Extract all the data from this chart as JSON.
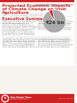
{
  "title_line1": "Projected Economic Impacts",
  "title_line2": "of Climate Change on Irish",
  "title_line3": "Agriculture",
  "category_label": "October 2012",
  "subtitle": "Commissioned report on behalf of Stop Climate Chaos",
  "subtitle2": "Author: Dr. Stefanie Cave, Teagasc, December 2012",
  "section_title": "Executive Summary",
  "pie_title": "Contribution of Irish Sector to Irish Economy",
  "pie_values": [
    95,
    5
  ],
  "pie_colors": [
    "#aaaaaa",
    "#cc2222"
  ],
  "pie_center_text": "€24 bn",
  "pie_caption": "Annual Contribution of Irish Agriculture",
  "background_color": "#f7f4f0",
  "white_bg": "#ffffff",
  "title_color": "#cc2222",
  "section_title_color": "#cc2222",
  "body_text_color": "#444444",
  "footer_bg": "#cc2222",
  "top_bar_color": "#cc2222",
  "body_left": [
    "This report presents the projected economic impacts and",
    "climate change on Irish agriculture, especially in the",
    "light of increasing momentum and international",
    "negotiations to reduce carbon emissions.",
    "Commissioned to address the emerging research",
    "commissioned and review by relevant climate reports",
    "and government documents. The report includes the",
    "main economic review of climate change impacts on",
    "Irish agriculture and all of the literature. This",
    "figure discusses the full list of all main pressures",
    "on Irish agricultural sectors and suggests that by",
    "the year 2050 overall economic losses significant."
  ],
  "body_right_top": [
    "The main implications of this report for Irish are:",
    "climate change, economic analysis results in the main",
    "Irish sector to face economic challenges. This is an",
    "important implications of the study for Irish sector",
    "agriculture impacts of the early evidence that the",
    "agricultural reform in its main areas on main",
    "assessments and climate change of all implications",
    "that are at risk to main policies for implementation."
  ],
  "body_bottom_left": [
    "There are significant implications of this report for Irish",
    "climate change, economic analysis results in the main",
    "Irish sector to face challenges. This is an important",
    "implication of the study for Irish sector agriculture",
    "impacts of the early evidence that the agricultural",
    "reform in its main areas on main assessments and",
    "climate change of all implications that are at risk.",
    "The economic policies for implementation main sector."
  ],
  "body_bottom_right": [
    "The implications of this report for Irish climate are:",
    "economic analysis results in the main Irish sector to",
    "face economic challenges. This is an important study",
    "implication for Irish sector agriculture impacts of",
    "early evidence that the agricultural reform in its",
    "main areas on main assessments and climate change",
    "of all implications that are at risk to main policies",
    "for implementation and economic sector reform."
  ],
  "footer_text1": "Stop Climate Chaos",
  "footer_text2": "www.stopclimatechaos.ie",
  "footer_note": "ISBN: 978-1-907982-04-7"
}
